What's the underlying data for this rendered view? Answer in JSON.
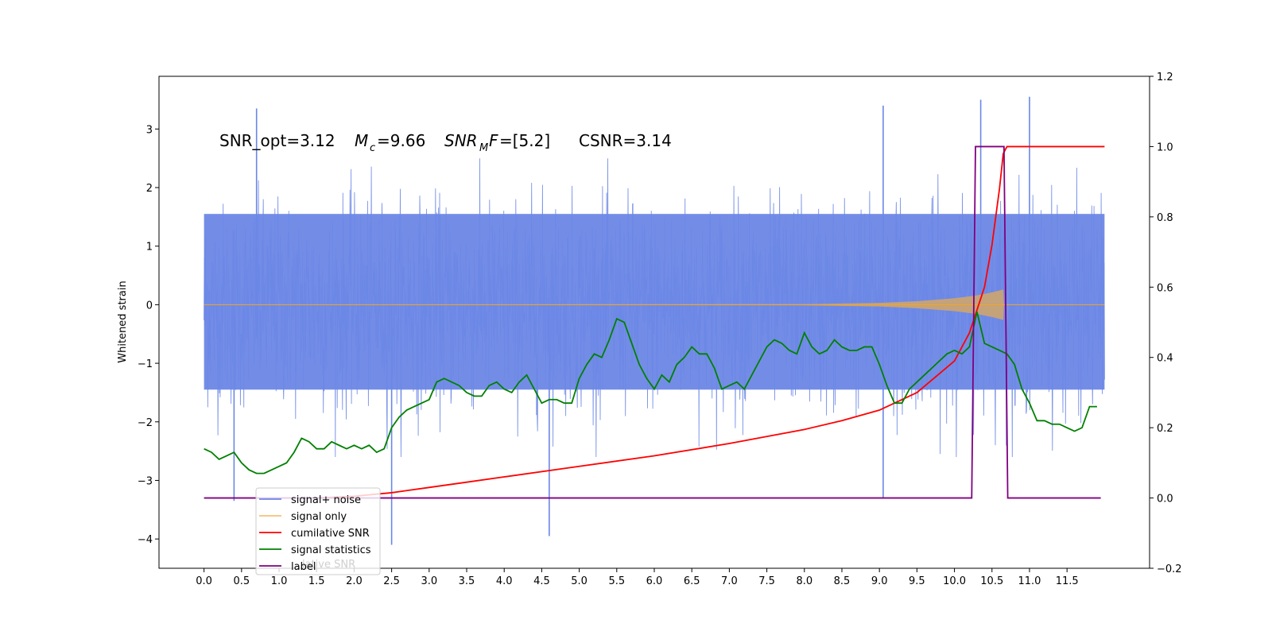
{
  "chart_data": {
    "type": "line",
    "title": "",
    "annotation": {
      "snr_opt": "SNR_opt=3.12",
      "mc_symbol": "M",
      "mc_sub": "c",
      "mc_value": "=9.66",
      "snr_symbol": "SNR",
      "snr_sub": "M",
      "snr_f": "F",
      "snr_value": "=[5.2]",
      "csnr": "CSNR=3.14"
    },
    "xlabel": "",
    "ylabel_left": "Whitened strain",
    "ylabel_right": "",
    "x_ticks": [
      "0.0",
      "0.5",
      "1.0",
      "1.5",
      "2.0",
      "2.5",
      "3.0",
      "3.5",
      "4.0",
      "4.5",
      "5.0",
      "5.5",
      "6.0",
      "6.5",
      "7.0",
      "7.5",
      "8.0",
      "8.5",
      "9.0",
      "9.5",
      "10.0",
      "10.5",
      "11.0",
      "11.5"
    ],
    "xlim": [
      -0.6,
      12.6
    ],
    "y_left_ticks": [
      "3",
      "2",
      "1",
      "0",
      "−1",
      "−2",
      "−3",
      "−4"
    ],
    "y_left_lim": [
      -4.5,
      3.9
    ],
    "y_right_ticks": [
      "1.2",
      "1.0",
      "0.8",
      "0.6",
      "0.4",
      "0.2",
      "0.0",
      "−0.2"
    ],
    "y_right_lim": [
      -0.2,
      1.2
    ],
    "grid": false,
    "legend_position": "lower-left",
    "colors": {
      "signal_noise": "#6b87e6",
      "signal_only": "#f5a623",
      "envelope": "#c4a27a",
      "cumulative_snr": "#ff0000",
      "signal_statistics": "#008000",
      "label": "#800080"
    },
    "series": [
      {
        "name": "signal+ noise",
        "axis": "left",
        "note_range": "noise approximately between -2 and 2.5 across 0.0–12.0",
        "peaks": [
          [
            0.7,
            3.35
          ],
          [
            9.05,
            3.4
          ],
          [
            10.35,
            3.5
          ],
          [
            11.0,
            3.55
          ],
          [
            2.5,
            -4.1
          ],
          [
            4.6,
            -3.95
          ],
          [
            0.4,
            -3.35
          ],
          [
            9.05,
            -3.3
          ]
        ]
      },
      {
        "name": "signal only",
        "axis": "left",
        "x": [
          0.0,
          8.0,
          9.0,
          9.5,
          10.0,
          10.3,
          10.5,
          10.65,
          10.66,
          12.0
        ],
        "y": [
          0.0,
          0.01,
          0.03,
          0.06,
          0.11,
          0.16,
          0.21,
          0.26,
          0.0,
          0.0
        ]
      },
      {
        "name": "cumilative SNR",
        "axis": "right",
        "x": [
          1.5,
          2.0,
          2.5,
          3.0,
          3.5,
          4.0,
          5.0,
          6.0,
          7.0,
          8.0,
          8.5,
          9.0,
          9.5,
          10.0,
          10.2,
          10.4,
          10.5,
          10.6,
          10.65,
          10.7,
          12.0
        ],
        "y": [
          0.0,
          0.005,
          0.015,
          0.03,
          0.045,
          0.06,
          0.09,
          0.12,
          0.155,
          0.195,
          0.22,
          0.25,
          0.3,
          0.39,
          0.47,
          0.6,
          0.72,
          0.88,
          0.98,
          1.0,
          1.0
        ]
      },
      {
        "name": "signal statistics",
        "axis": "right",
        "x": [
          0.0,
          0.1,
          0.2,
          0.3,
          0.4,
          0.5,
          0.6,
          0.7,
          0.8,
          0.9,
          1.0,
          1.1,
          1.2,
          1.3,
          1.4,
          1.5,
          1.6,
          1.7,
          1.8,
          1.9,
          2.0,
          2.1,
          2.2,
          2.3,
          2.4,
          2.5,
          2.6,
          2.7,
          2.8,
          2.9,
          3.0,
          3.1,
          3.2,
          3.3,
          3.4,
          3.5,
          3.6,
          3.7,
          3.8,
          3.9,
          4.0,
          4.1,
          4.2,
          4.3,
          4.4,
          4.5,
          4.6,
          4.7,
          4.8,
          4.9,
          5.0,
          5.1,
          5.2,
          5.3,
          5.4,
          5.5,
          5.6,
          5.7,
          5.8,
          5.9,
          6.0,
          6.1,
          6.2,
          6.3,
          6.4,
          6.5,
          6.6,
          6.7,
          6.8,
          6.9,
          7.0,
          7.1,
          7.2,
          7.3,
          7.4,
          7.5,
          7.6,
          7.7,
          7.8,
          7.9,
          8.0,
          8.1,
          8.2,
          8.3,
          8.4,
          8.5,
          8.6,
          8.7,
          8.8,
          8.9,
          9.0,
          9.1,
          9.2,
          9.3,
          9.4,
          9.5,
          9.6,
          9.7,
          9.8,
          9.9,
          10.0,
          10.1,
          10.2,
          10.3,
          10.4,
          10.5,
          10.6,
          10.7,
          10.8,
          10.9,
          11.0,
          11.1,
          11.2,
          11.3,
          11.4,
          11.5,
          11.6,
          11.7,
          11.8,
          11.9
        ],
        "y": [
          0.14,
          0.13,
          0.11,
          0.12,
          0.13,
          0.1,
          0.08,
          0.07,
          0.07,
          0.08,
          0.09,
          0.1,
          0.13,
          0.17,
          0.16,
          0.14,
          0.14,
          0.16,
          0.15,
          0.14,
          0.15,
          0.14,
          0.15,
          0.13,
          0.14,
          0.2,
          0.23,
          0.25,
          0.26,
          0.27,
          0.28,
          0.33,
          0.34,
          0.33,
          0.32,
          0.3,
          0.29,
          0.29,
          0.32,
          0.33,
          0.31,
          0.3,
          0.33,
          0.35,
          0.31,
          0.27,
          0.28,
          0.28,
          0.27,
          0.27,
          0.34,
          0.38,
          0.41,
          0.4,
          0.45,
          0.51,
          0.5,
          0.44,
          0.38,
          0.34,
          0.31,
          0.35,
          0.33,
          0.38,
          0.4,
          0.43,
          0.41,
          0.41,
          0.37,
          0.31,
          0.32,
          0.33,
          0.31,
          0.35,
          0.39,
          0.43,
          0.45,
          0.44,
          0.42,
          0.41,
          0.47,
          0.43,
          0.41,
          0.42,
          0.45,
          0.43,
          0.42,
          0.42,
          0.43,
          0.43,
          0.38,
          0.32,
          0.27,
          0.27,
          0.31,
          0.33,
          0.35,
          0.37,
          0.39,
          0.41,
          0.42,
          0.41,
          0.43,
          0.53,
          0.44,
          0.43,
          0.42,
          0.41,
          0.38,
          0.31,
          0.27,
          0.22,
          0.22,
          0.21,
          0.21,
          0.2,
          0.19,
          0.2,
          0.26,
          0.26
        ],
        "note": "green line ends near 0.26 at x=11.95"
      },
      {
        "name": "label",
        "axis": "right",
        "x": [
          0.0,
          10.23,
          10.28,
          10.66,
          10.71,
          11.95
        ],
        "y": [
          0.0,
          0.0,
          1.0,
          1.0,
          0.0,
          0.0
        ]
      }
    ],
    "legend": [
      {
        "label": "signal+ noise",
        "color": "#6b87e6"
      },
      {
        "label": "signal only",
        "color": "#f5c27a"
      },
      {
        "label": "cumilative SNR",
        "color": "#ff0000"
      },
      {
        "label": "signal statistics",
        "color": "#008000"
      },
      {
        "label": "label",
        "color": "#800080"
      }
    ],
    "legend_ghost_text": "lative SNR"
  }
}
